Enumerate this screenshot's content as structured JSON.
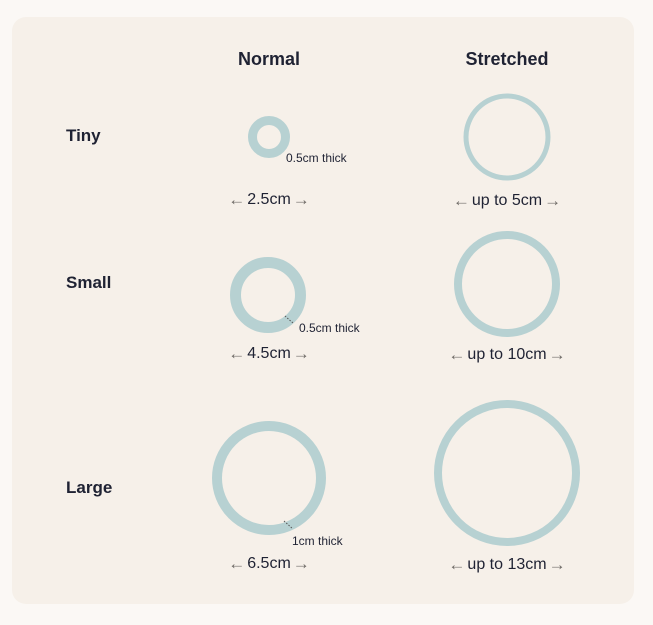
{
  "colors": {
    "ring": "#b7d1d2",
    "card": "#f6f0e9",
    "background": "#fbf8f5",
    "text": "#1f2233"
  },
  "columns": {
    "normal": "Normal",
    "stretched": "Stretched"
  },
  "rows": [
    {
      "label": "Tiny",
      "normal_size": "2.5cm",
      "stretched_size": "up to 5cm",
      "thickness": "0.5cm thick"
    },
    {
      "label": "Small",
      "normal_size": "4.5cm",
      "stretched_size": "up to 10cm",
      "thickness": "0.5cm thick"
    },
    {
      "label": "Large",
      "normal_size": "6.5cm",
      "stretched_size": "up to 13cm",
      "thickness": "1cm thick"
    }
  ],
  "icons": {
    "left": "arrow-left-icon",
    "right": "arrow-right-icon"
  }
}
